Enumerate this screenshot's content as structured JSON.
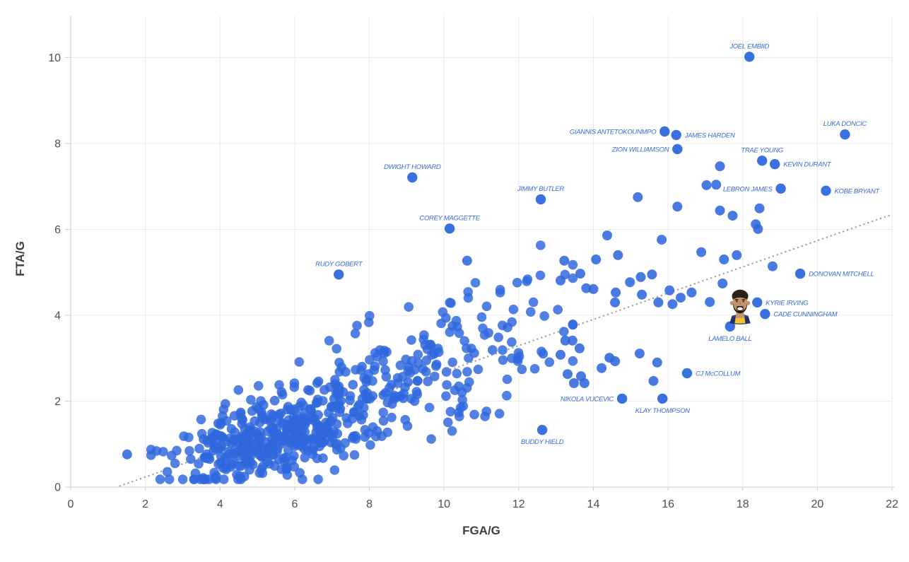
{
  "chart_data": {
    "type": "scatter",
    "title": "",
    "xlabel": "FGA/G",
    "ylabel": "FTA/G",
    "xlim": [
      0,
      22
    ],
    "ylim": [
      0,
      11
    ],
    "xticks": [
      0,
      2,
      4,
      6,
      8,
      10,
      12,
      14,
      16,
      18,
      20,
      22
    ],
    "yticks": [
      0,
      2,
      4,
      6,
      8,
      10
    ],
    "grid": true,
    "legend": "none",
    "colors": {
      "point": "#2f68dd",
      "player_label": "#3a6bd8",
      "gridline": "#ebebeb",
      "axis_line": "#cccccc",
      "tick_text": "#4f4f4f",
      "axis_title_text": "#3f3f3f",
      "trendline": "#9b9b9b"
    },
    "trendline": {
      "style": "dotted",
      "x1": 1.3,
      "y1": 0.02,
      "x2": 22.0,
      "y2": 6.35
    },
    "labeled_players": [
      {
        "name": "JOEL EMBIID",
        "x": 18.18,
        "y": 10.02,
        "label_pos": "above"
      },
      {
        "name": "LUKA DONCIC",
        "x": 20.74,
        "y": 8.21,
        "label_pos": "above"
      },
      {
        "name": "GIANNIS ANTETOKOUNMPO",
        "x": 15.91,
        "y": 8.28,
        "label_pos": "left"
      },
      {
        "name": "JAMES HARDEN",
        "x": 16.22,
        "y": 8.2,
        "label_pos": "right"
      },
      {
        "name": "ZION WILLIAMSON",
        "x": 16.25,
        "y": 7.87,
        "label_pos": "left"
      },
      {
        "name": "TRAE YOUNG",
        "x": 18.52,
        "y": 7.6,
        "label_pos": "above"
      },
      {
        "name": "KEVIN DURANT",
        "x": 18.86,
        "y": 7.52,
        "label_pos": "right"
      },
      {
        "name": "LEBRON JAMES",
        "x": 19.02,
        "y": 6.95,
        "label_pos": "left"
      },
      {
        "name": "KOBE BRYANT",
        "x": 20.23,
        "y": 6.9,
        "label_pos": "right"
      },
      {
        "name": "DWIGHT HOWARD",
        "x": 9.15,
        "y": 7.21,
        "label_pos": "above"
      },
      {
        "name": "JIMMY BUTLER",
        "x": 12.59,
        "y": 6.7,
        "label_pos": "above"
      },
      {
        "name": "COREY MAGGETTE",
        "x": 10.15,
        "y": 6.02,
        "label_pos": "above"
      },
      {
        "name": "RUDY GOBERT",
        "x": 7.18,
        "y": 4.95,
        "label_pos": "above"
      },
      {
        "name": "DONOVAN MITCHELL",
        "x": 19.54,
        "y": 4.97,
        "label_pos": "right"
      },
      {
        "name": "KYRIE IRVING",
        "x": 18.39,
        "y": 4.3,
        "label_pos": "right"
      },
      {
        "name": "CADE CUNNINGHAM",
        "x": 18.6,
        "y": 4.03,
        "label_pos": "right"
      },
      {
        "name": "LAMELO BALL",
        "x": 17.66,
        "y": 3.74,
        "label_pos": "below"
      },
      {
        "name": "CJ McCOLLUM",
        "x": 16.51,
        "y": 2.65,
        "label_pos": "right"
      },
      {
        "name": "NIKOLA VUCEVIC",
        "x": 14.77,
        "y": 2.06,
        "label_pos": "left"
      },
      {
        "name": "KLAY THOMPSON",
        "x": 15.85,
        "y": 2.06,
        "label_pos": "below"
      },
      {
        "name": "BUDDY HIELD",
        "x": 12.63,
        "y": 1.33,
        "label_pos": "below"
      }
    ],
    "avatar_marker": {
      "name": "player-face",
      "x": 17.93,
      "y": 4.25
    },
    "extra_points": [
      [
        1.51,
        0.76
      ],
      [
        10.62,
        5.27
      ],
      [
        13.25,
        3.41
      ],
      [
        13.44,
        3.41
      ],
      [
        13.63,
        3.23
      ],
      [
        13.12,
        3.08
      ],
      [
        13.31,
        2.63
      ],
      [
        13.67,
        2.58
      ],
      [
        13.48,
        2.42
      ],
      [
        13.76,
        2.42
      ],
      [
        14.43,
        3.01
      ],
      [
        14.58,
        2.93
      ],
      [
        14.22,
        2.77
      ],
      [
        15.24,
        3.11
      ],
      [
        15.71,
        2.9
      ],
      [
        15.61,
        2.47
      ],
      [
        15.19,
        6.75
      ],
      [
        16.25,
        6.53
      ],
      [
        17.03,
        7.03
      ],
      [
        17.29,
        7.04
      ],
      [
        17.39,
        7.47
      ],
      [
        17.39,
        6.44
      ],
      [
        17.73,
        6.32
      ],
      [
        18.45,
        6.49
      ],
      [
        18.35,
        6.12
      ],
      [
        18.41,
        6.01
      ],
      [
        14.37,
        5.86
      ],
      [
        15.83,
        5.76
      ],
      [
        13.22,
        5.27
      ],
      [
        14.07,
        5.3
      ],
      [
        14.66,
        5.4
      ],
      [
        16.89,
        5.47
      ],
      [
        17.5,
        5.3
      ],
      [
        17.84,
        5.4
      ],
      [
        18.8,
        5.14
      ],
      [
        13.65,
        4.97
      ],
      [
        13.12,
        4.81
      ],
      [
        14.98,
        4.77
      ],
      [
        15.27,
        4.89
      ],
      [
        15.57,
        4.95
      ],
      [
        13.81,
        4.63
      ],
      [
        14.0,
        4.61
      ],
      [
        14.6,
        4.53
      ],
      [
        15.3,
        4.48
      ],
      [
        16.04,
        4.58
      ],
      [
        16.34,
        4.41
      ],
      [
        16.63,
        4.53
      ],
      [
        17.46,
        4.74
      ],
      [
        17.12,
        4.31
      ],
      [
        14.58,
        4.3
      ],
      [
        15.74,
        4.3
      ],
      [
        16.12,
        4.26
      ]
    ],
    "background_cloud": {
      "count": 600,
      "seed": 20240207,
      "y_floor": 0.18,
      "y_ceiling": 6.05,
      "y_cap_slope": 0.5,
      "y_cap_intercept": 1.35,
      "components": [
        {
          "weight": 0.5,
          "mx": 5.3,
          "sx": 1.3,
          "slope": 0.26,
          "b0": -0.3,
          "sy": 0.42,
          "xmin": 2.15,
          "xmax": 9.5
        },
        {
          "weight": 0.33,
          "mx": 7.6,
          "sx": 2.1,
          "slope": 0.3,
          "b0": -0.3,
          "sy": 0.65,
          "xmin": 2.3,
          "xmax": 12.8
        },
        {
          "weight": 0.17,
          "mx": 10.6,
          "sx": 1.7,
          "slope": 0.3,
          "b0": 0.05,
          "sy": 0.88,
          "xmin": 7.2,
          "xmax": 13.45
        }
      ]
    }
  }
}
